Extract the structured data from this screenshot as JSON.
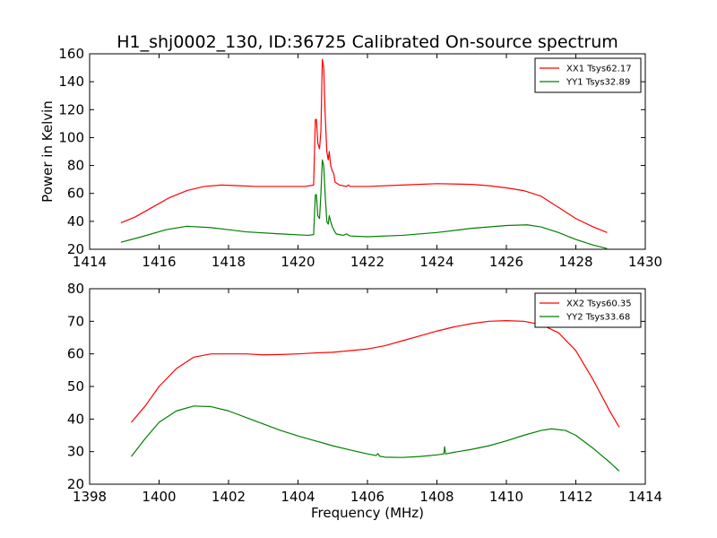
{
  "chart_data": [
    {
      "type": "line",
      "title": "H1_shj0002_130, ID:36725 Calibrated On-source spectrum",
      "xlabel": "",
      "ylabel": "Power in Kelvin",
      "xlim": [
        1414,
        1430
      ],
      "ylim": [
        20,
        160
      ],
      "xticks": [
        1414,
        1416,
        1418,
        1420,
        1422,
        1424,
        1426,
        1428,
        1430
      ],
      "yticks": [
        20,
        40,
        60,
        80,
        100,
        120,
        140,
        160
      ],
      "legend_position": "top-right",
      "series": [
        {
          "name": "XX1 Tsys62.17",
          "color": "#ff0000",
          "points": [
            [
              1414.9,
              39
            ],
            [
              1415.3,
              43
            ],
            [
              1415.8,
              50
            ],
            [
              1416.3,
              57
            ],
            [
              1416.8,
              62
            ],
            [
              1417.3,
              65
            ],
            [
              1417.8,
              66
            ],
            [
              1418.3,
              65.5
            ],
            [
              1418.8,
              65
            ],
            [
              1419.3,
              65
            ],
            [
              1419.8,
              65
            ],
            [
              1420.2,
              65
            ],
            [
              1420.45,
              66
            ],
            [
              1420.5,
              113
            ],
            [
              1420.53,
              113
            ],
            [
              1420.57,
              96
            ],
            [
              1420.62,
              92
            ],
            [
              1420.66,
              105
            ],
            [
              1420.7,
              156
            ],
            [
              1420.74,
              150
            ],
            [
              1420.78,
              118
            ],
            [
              1420.83,
              90
            ],
            [
              1420.87,
              84
            ],
            [
              1420.9,
              90
            ],
            [
              1420.94,
              80
            ],
            [
              1420.99,
              76
            ],
            [
              1421.03,
              74
            ],
            [
              1421.07,
              68
            ],
            [
              1421.2,
              66
            ],
            [
              1421.4,
              65
            ],
            [
              1421.45,
              66
            ],
            [
              1421.5,
              65
            ],
            [
              1422,
              65
            ],
            [
              1423,
              66
            ],
            [
              1424,
              67
            ],
            [
              1425,
              66.5
            ],
            [
              1425.5,
              65.5
            ],
            [
              1426,
              64
            ],
            [
              1426.5,
              62
            ],
            [
              1427,
              58
            ],
            [
              1427.5,
              50
            ],
            [
              1428,
              42
            ],
            [
              1428.5,
              36
            ],
            [
              1428.9,
              32
            ]
          ]
        },
        {
          "name": "YY1 Tsys32.89",
          "color": "#008000",
          "points": [
            [
              1414.9,
              25
            ],
            [
              1415.5,
              29
            ],
            [
              1416.2,
              34
            ],
            [
              1416.8,
              36.5
            ],
            [
              1417.5,
              35.5
            ],
            [
              1418.5,
              32.5
            ],
            [
              1419.5,
              31
            ],
            [
              1420.3,
              30
            ],
            [
              1420.45,
              30.5
            ],
            [
              1420.5,
              59
            ],
            [
              1420.53,
              59
            ],
            [
              1420.57,
              44
            ],
            [
              1420.62,
              42
            ],
            [
              1420.66,
              60
            ],
            [
              1420.7,
              84
            ],
            [
              1420.74,
              80
            ],
            [
              1420.78,
              60
            ],
            [
              1420.83,
              40
            ],
            [
              1420.87,
              38
            ],
            [
              1420.9,
              44
            ],
            [
              1420.94,
              40
            ],
            [
              1420.99,
              36
            ],
            [
              1421.05,
              33
            ],
            [
              1421.1,
              31
            ],
            [
              1421.3,
              30
            ],
            [
              1421.4,
              31
            ],
            [
              1421.5,
              29.5
            ],
            [
              1422,
              29
            ],
            [
              1423,
              30
            ],
            [
              1424,
              32
            ],
            [
              1425,
              35
            ],
            [
              1426,
              37
            ],
            [
              1426.6,
              37.5
            ],
            [
              1427,
              36
            ],
            [
              1427.5,
              32
            ],
            [
              1428,
              27
            ],
            [
              1428.5,
              23
            ],
            [
              1428.9,
              20.5
            ]
          ]
        }
      ]
    },
    {
      "type": "line",
      "title": "",
      "xlabel": "Frequency (MHz)",
      "ylabel": "",
      "xlim": [
        1398,
        1414
      ],
      "ylim": [
        20,
        80
      ],
      "xticks": [
        1398,
        1400,
        1402,
        1404,
        1406,
        1408,
        1410,
        1412,
        1414
      ],
      "yticks": [
        20,
        30,
        40,
        50,
        60,
        70,
        80
      ],
      "legend_position": "top-right",
      "series": [
        {
          "name": "XX2 Tsys60.35",
          "color": "#ff0000",
          "points": [
            [
              1399.2,
              39
            ],
            [
              1399.6,
              44
            ],
            [
              1400,
              50
            ],
            [
              1400.5,
              55.5
            ],
            [
              1401,
              59
            ],
            [
              1401.5,
              60
            ],
            [
              1402,
              60
            ],
            [
              1402.5,
              60
            ],
            [
              1403,
              59.7
            ],
            [
              1403.5,
              59.8
            ],
            [
              1404,
              60
            ],
            [
              1404.5,
              60.3
            ],
            [
              1405,
              60.5
            ],
            [
              1405.5,
              61
            ],
            [
              1406,
              61.5
            ],
            [
              1406.5,
              62.5
            ],
            [
              1407,
              64
            ],
            [
              1407.5,
              65.5
            ],
            [
              1408,
              67
            ],
            [
              1408.5,
              68.3
            ],
            [
              1409,
              69.3
            ],
            [
              1409.5,
              70
            ],
            [
              1410,
              70.2
            ],
            [
              1410.5,
              70
            ],
            [
              1411,
              69
            ],
            [
              1411.5,
              66.5
            ],
            [
              1412,
              61
            ],
            [
              1412.5,
              52
            ],
            [
              1413,
              42
            ],
            [
              1413.25,
              37.5
            ]
          ]
        },
        {
          "name": "YY2 Tsys33.68",
          "color": "#008000",
          "points": [
            [
              1399.2,
              28.5
            ],
            [
              1399.6,
              34
            ],
            [
              1400,
              39
            ],
            [
              1400.5,
              42.5
            ],
            [
              1401,
              44
            ],
            [
              1401.5,
              43.8
            ],
            [
              1402,
              42.5
            ],
            [
              1402.5,
              40.5
            ],
            [
              1403,
              38.5
            ],
            [
              1403.5,
              36.5
            ],
            [
              1404,
              34.8
            ],
            [
              1404.5,
              33.3
            ],
            [
              1405,
              31.8
            ],
            [
              1405.5,
              30.5
            ],
            [
              1406,
              29.3
            ],
            [
              1406.25,
              28.8
            ],
            [
              1406.3,
              29.4
            ],
            [
              1406.35,
              28.6
            ],
            [
              1406.5,
              28.3
            ],
            [
              1407,
              28.2
            ],
            [
              1407.5,
              28.5
            ],
            [
              1408,
              29
            ],
            [
              1408.2,
              29.3
            ],
            [
              1408.22,
              31.5
            ],
            [
              1408.25,
              29.3
            ],
            [
              1408.5,
              29.8
            ],
            [
              1409,
              30.7
            ],
            [
              1409.5,
              31.8
            ],
            [
              1410,
              33.3
            ],
            [
              1410.5,
              35
            ],
            [
              1411,
              36.5
            ],
            [
              1411.3,
              37
            ],
            [
              1411.7,
              36.5
            ],
            [
              1412,
              35
            ],
            [
              1412.5,
              31
            ],
            [
              1413,
              26.5
            ],
            [
              1413.25,
              24
            ]
          ]
        }
      ]
    }
  ]
}
